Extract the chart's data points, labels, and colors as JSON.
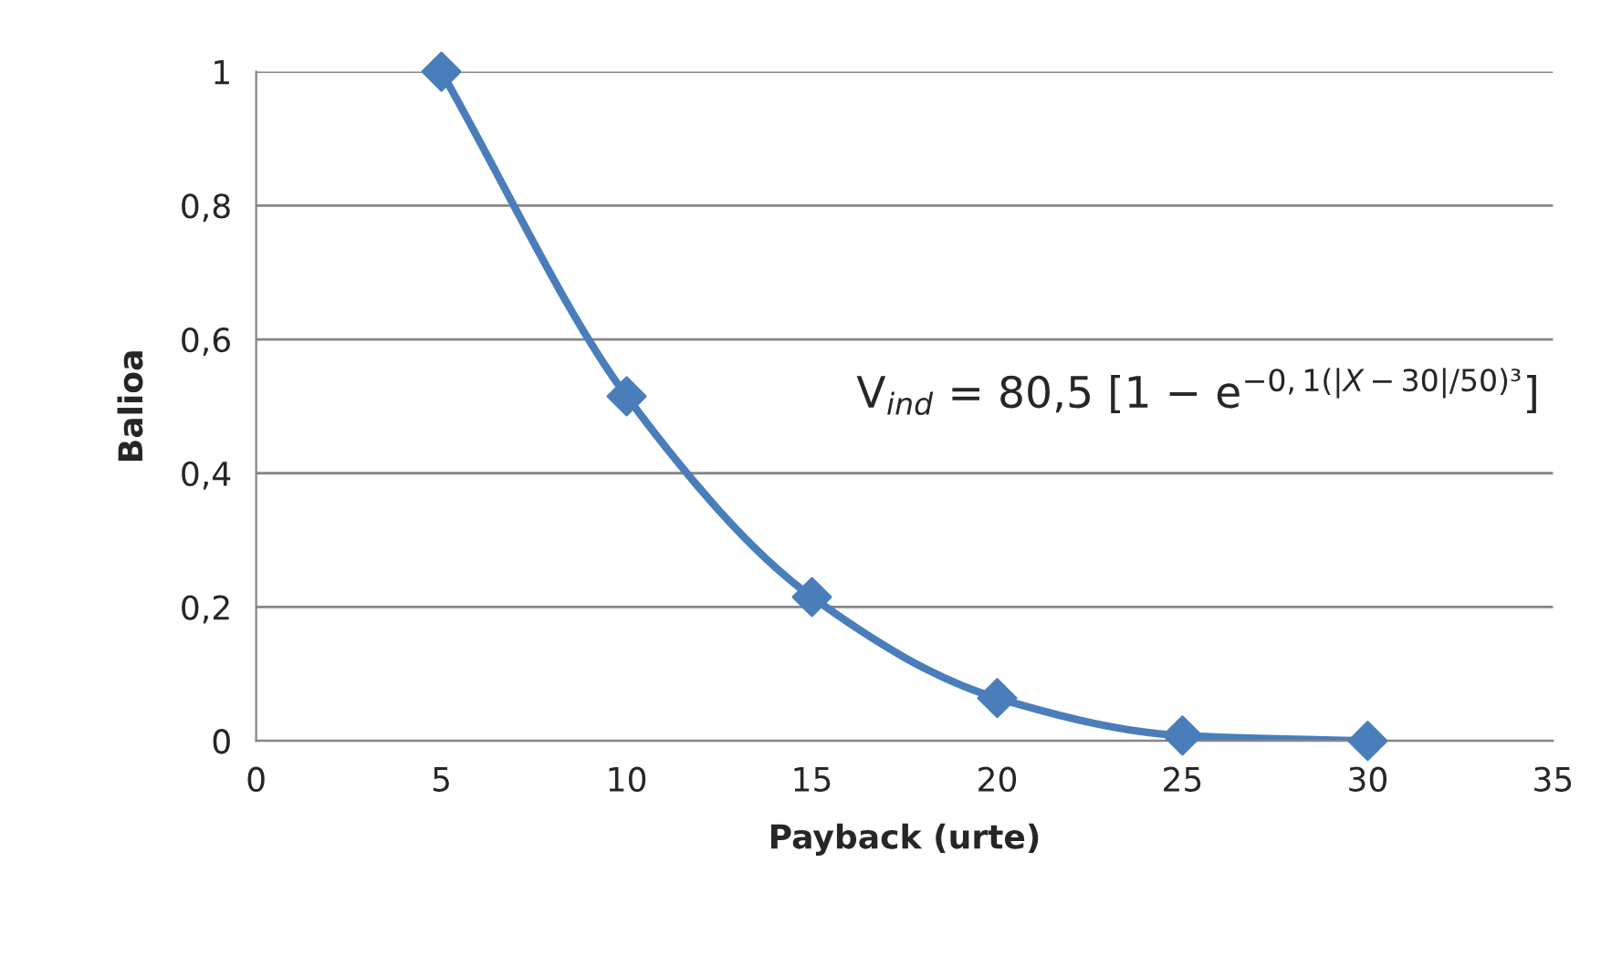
{
  "chart_data": {
    "type": "line",
    "xlabel": "Payback (urte)",
    "ylabel": "Balioa",
    "x": [
      5,
      10,
      15,
      20,
      25,
      30
    ],
    "series": [
      {
        "color": "#4a7ebb",
        "values": [
          1,
          0.515,
          0.215,
          0.064,
          0.008,
          0
        ]
      }
    ],
    "xlim": [
      0,
      35
    ],
    "xticks": [
      0,
      5,
      10,
      15,
      20,
      25,
      30,
      35
    ],
    "ylim": [
      0,
      1
    ],
    "yticks": [
      0,
      {
        "value": 0.2,
        "label": "0,2"
      },
      {
        "value": 0.4,
        "label": "0,4"
      },
      {
        "value": 0.6,
        "label": "0,6"
      },
      {
        "value": 0.8,
        "label": "0,8"
      },
      1
    ],
    "grid": "y",
    "marker": "diamond",
    "line_style": "solid",
    "annotations": [
      "V$_{ind}$ = 80,5 [1 − e$^{−0,1(|X−30|/50)³}$]"
    ]
  }
}
